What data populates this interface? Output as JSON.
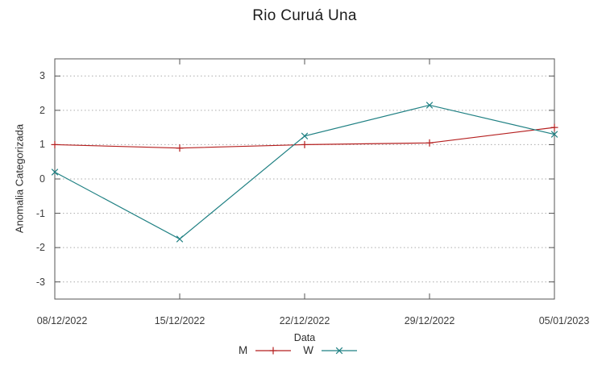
{
  "chart_data": {
    "type": "line",
    "title": "Rio Curuá Una",
    "xlabel": "Data",
    "ylabel": "Anomalia Categorizada",
    "categories": [
      "08/12/2022",
      "15/12/2022",
      "22/12/2022",
      "29/12/2022",
      "05/01/2023"
    ],
    "yticks": [
      3,
      2,
      1,
      0,
      -1,
      -2,
      -3
    ],
    "ylim": [
      -3.5,
      3.5
    ],
    "grid": "horizontal-dotted",
    "legend_position": "bottom-center",
    "series": [
      {
        "name": "M",
        "color": "#b51f1f",
        "marker": "plus",
        "values": [
          1.0,
          0.9,
          1.0,
          1.05,
          1.5
        ]
      },
      {
        "name": "W",
        "color": "#1f8083",
        "marker": "cross",
        "values": [
          0.2,
          -1.75,
          1.25,
          2.15,
          1.3
        ]
      }
    ],
    "axis_color": "#555555",
    "grid_color": "#ababab"
  }
}
